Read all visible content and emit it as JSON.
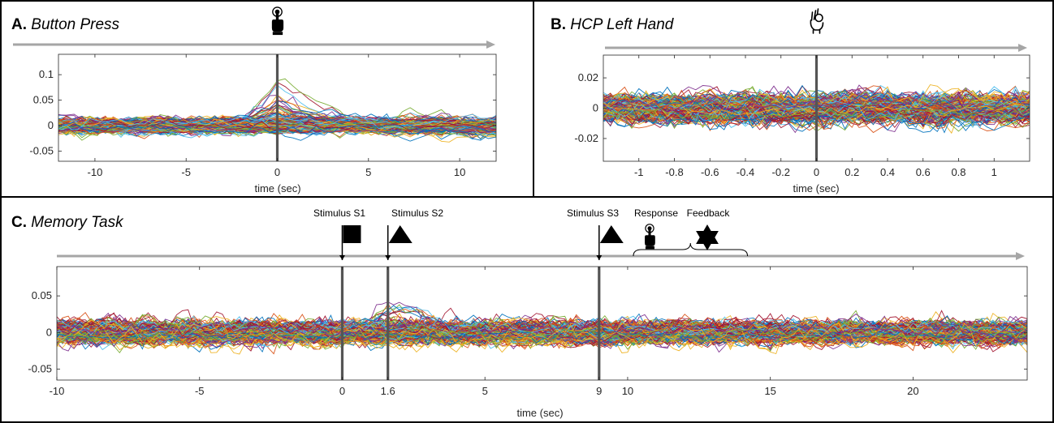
{
  "colors": {
    "palette": [
      "#0072BD",
      "#D95319",
      "#EDB120",
      "#7E2F8E",
      "#77AC30",
      "#4DBEEE",
      "#A2142F"
    ],
    "event_line": "#555555",
    "timeline_arrow": "#a6a6a6",
    "frame": "#000000"
  },
  "chart_data": [
    {
      "type": "line",
      "panel_letter": "A.",
      "title": "Button Press",
      "event_icon": "pointing-hand-icon",
      "xlabel": "time (sec)",
      "ylabel": "",
      "xlim": [
        -12,
        12
      ],
      "ylim": [
        -0.07,
        0.14
      ],
      "xticks": [
        -10,
        -5,
        0,
        5,
        10
      ],
      "yticks": [
        -0.05,
        0,
        0.05,
        0.1
      ],
      "event_lines": [
        0
      ],
      "grid": false,
      "legend": "none",
      "series_description": "many overlapping multicolor time courses, noise band about ±0.04; a subset rises to a peak near 0.13 just before 0 and decays over the following seconds",
      "series_count_estimate": 300
    },
    {
      "type": "line",
      "panel_letter": "B.",
      "title": "HCP Left Hand",
      "event_icon": "hand-gesture-icon",
      "xlabel": "time (sec)",
      "ylabel": "",
      "xlim": [
        -1.2,
        1.2
      ],
      "ylim": [
        -0.035,
        0.035
      ],
      "xticks": [
        -1,
        -0.8,
        -0.6,
        -0.4,
        -0.2,
        0,
        0.2,
        0.4,
        0.6,
        0.8,
        1
      ],
      "yticks": [
        -0.02,
        0,
        0.02
      ],
      "event_lines": [
        0
      ],
      "grid": false,
      "legend": "none",
      "series_description": "many overlapping multicolor time courses filling roughly ±0.025 with no clear event response",
      "series_count_estimate": 300
    },
    {
      "type": "line",
      "panel_letter": "C.",
      "title": "Memory Task",
      "xlabel": "time (sec)",
      "ylabel": "",
      "xlim": [
        -10,
        24
      ],
      "ylim": [
        -0.065,
        0.09
      ],
      "xticks": [
        -10,
        -5,
        0,
        1.6,
        5,
        9,
        10,
        15,
        20
      ],
      "yticks": [
        -0.05,
        0,
        0.05
      ],
      "event_lines": [
        0,
        1.6,
        9
      ],
      "grid": false,
      "legend": "none",
      "events": [
        {
          "label": "Stimulus S1",
          "time": 0,
          "icon": "square-flag-icon"
        },
        {
          "label": "Stimulus S2",
          "time": 1.6,
          "icon": "triangle-flag-icon"
        },
        {
          "label": "Stimulus S3",
          "time": 9,
          "icon": "triangle-flag-icon"
        }
      ],
      "response_label": "Response",
      "response_icon": "pointing-hand-icon",
      "feedback_label": "Feedback",
      "feedback_icon": "star-of-david-icon",
      "response_feedback_span": [
        10.2,
        14.2
      ],
      "series_description": "many overlapping multicolor time courses filling roughly ±0.045, with a few excursions near 0.075 shortly after 0",
      "series_count_estimate": 300
    }
  ]
}
